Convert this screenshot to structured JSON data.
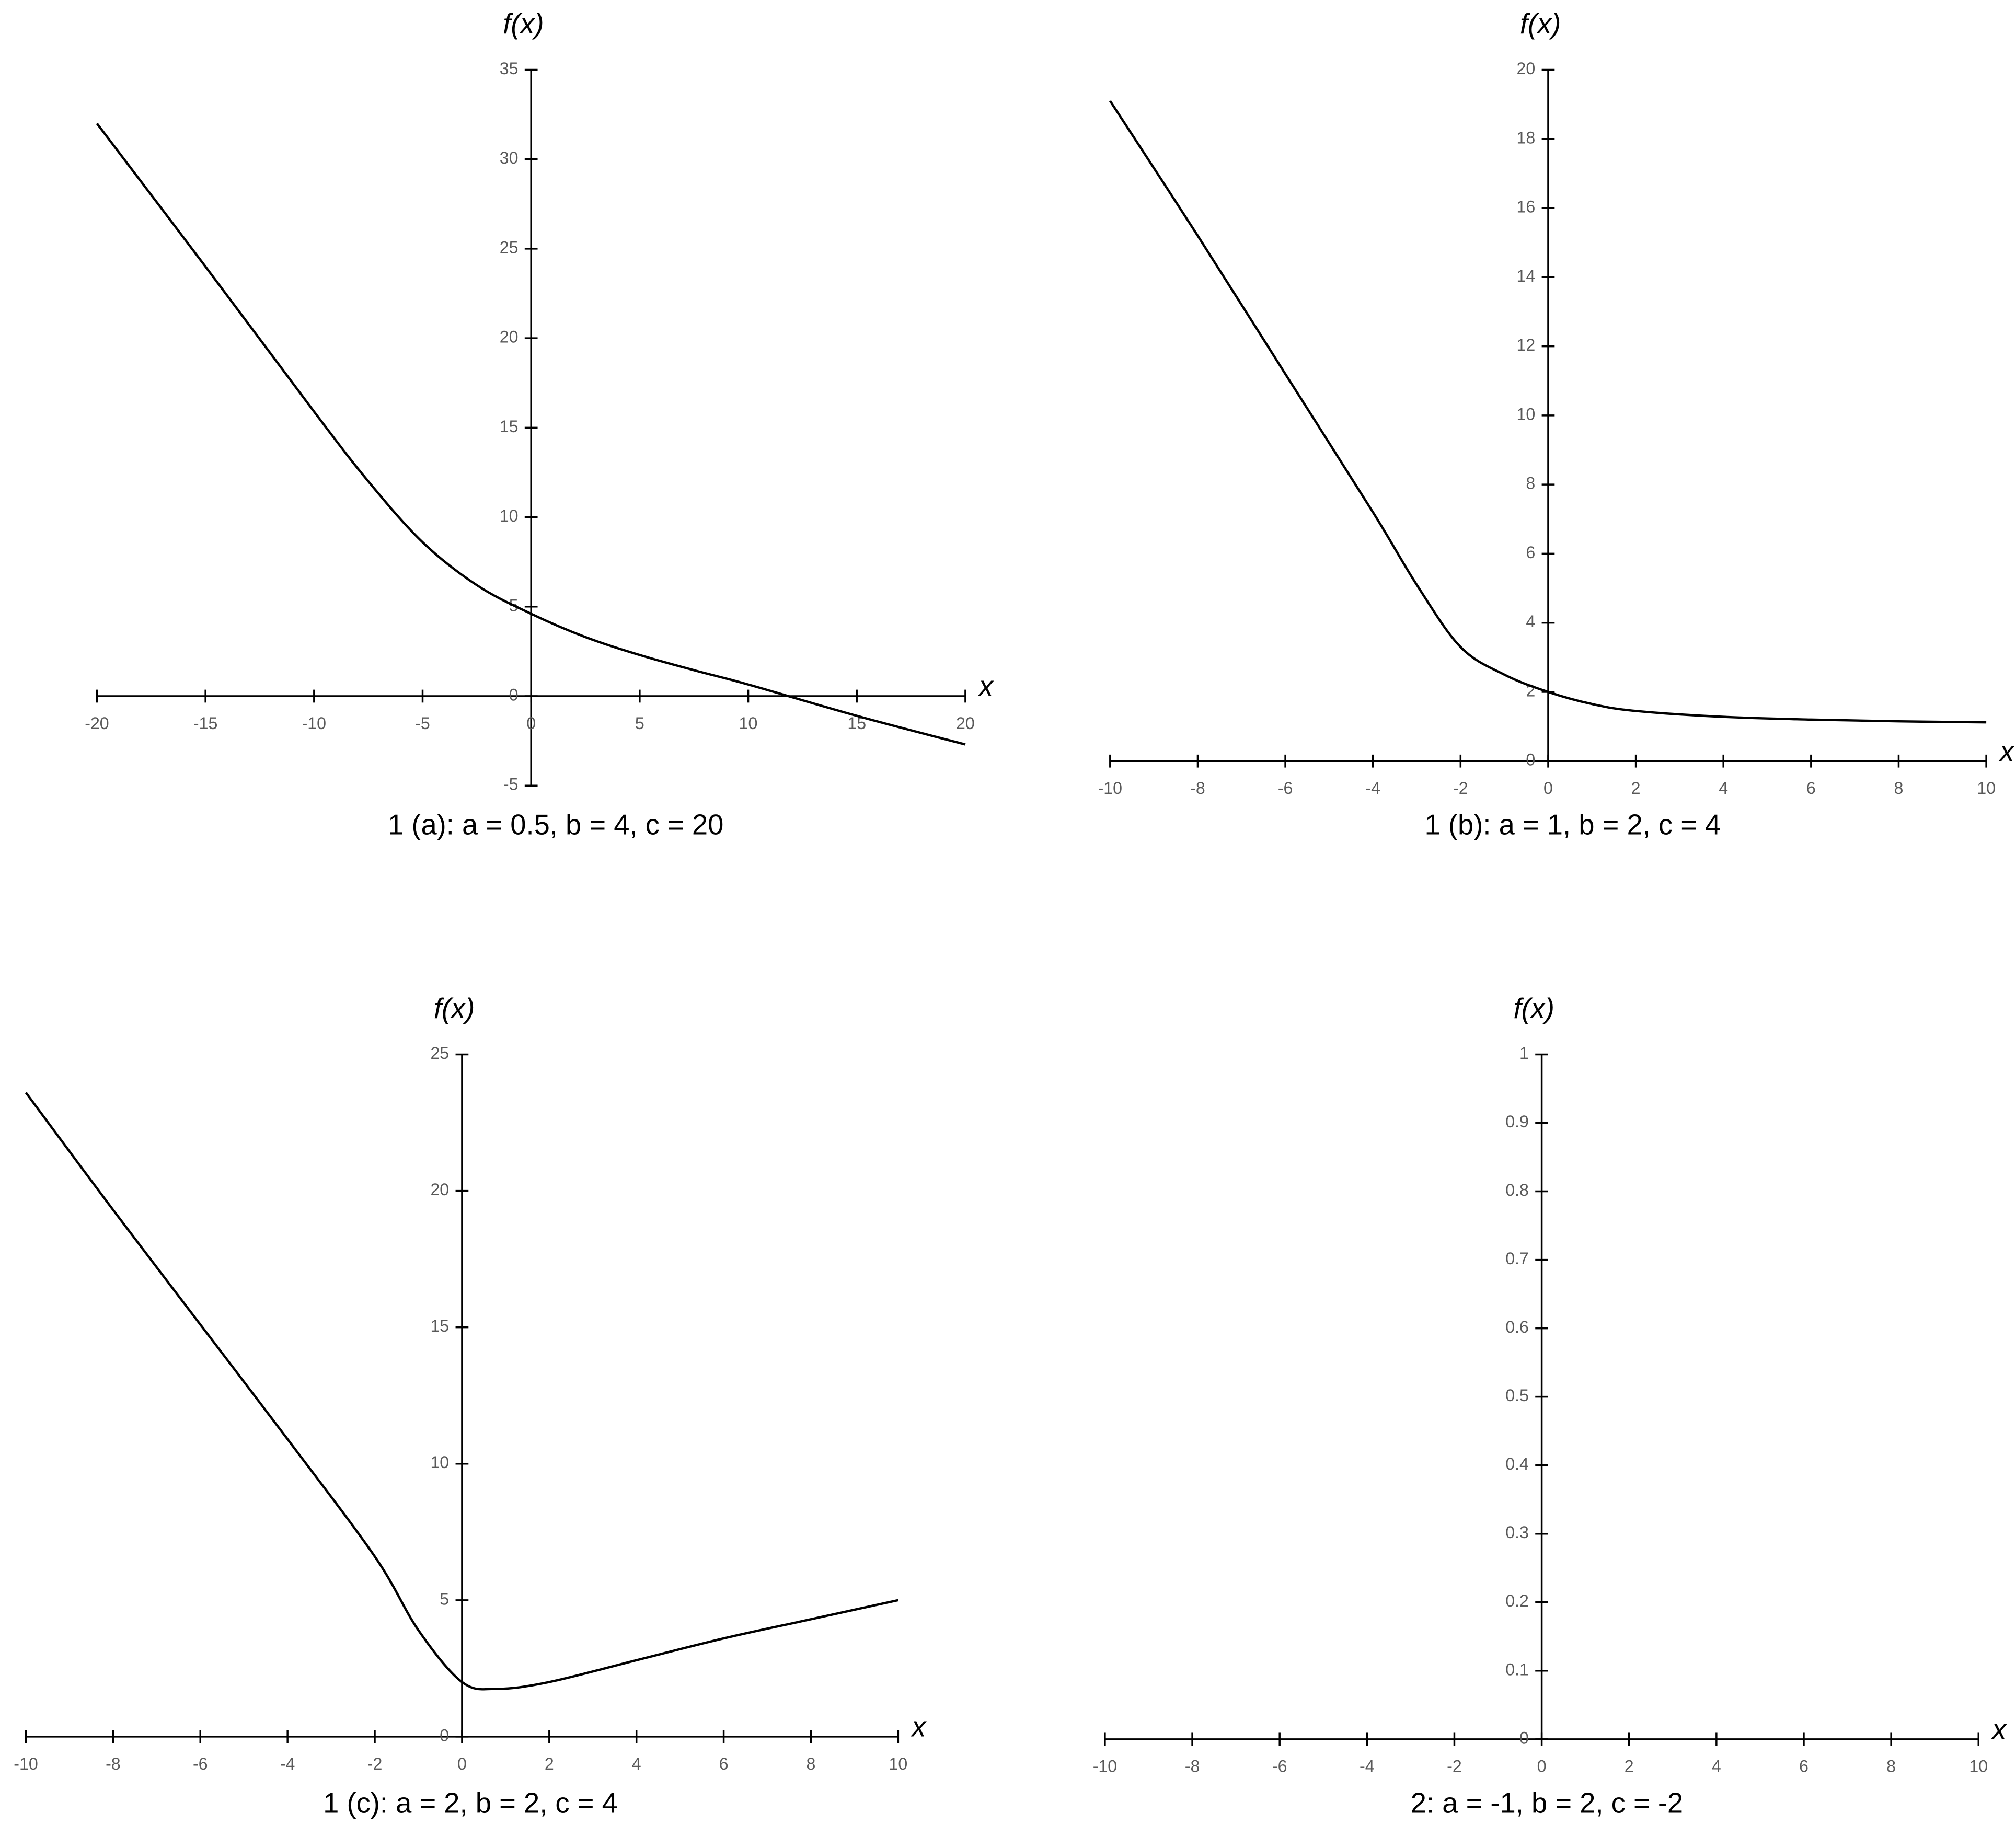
{
  "chart_data": [
    {
      "type": "line",
      "title": "1 (a): a = 0.5, b = 4, c = 20",
      "xlabel": "x",
      "ylabel": "f(x)",
      "x": [
        -20,
        -15,
        -10,
        -7.5,
        -5,
        -2.5,
        0,
        2.5,
        5,
        7.5,
        10,
        15,
        20
      ],
      "series": [
        {
          "color": "#000000",
          "values": [
            32,
            24,
            15.9,
            12,
            8.6,
            6.2,
            4.6,
            3.3,
            2.3,
            1.45,
            0.65,
            -1.1,
            -2.7
          ]
        }
      ],
      "xlim": [
        -20,
        20
      ],
      "ylim": [
        -5,
        35
      ],
      "xticks": [
        -20,
        -15,
        -10,
        -5,
        0,
        5,
        10,
        15,
        20
      ],
      "yticks": [
        -5,
        0,
        5,
        10,
        15,
        20,
        25,
        30,
        35
      ]
    },
    {
      "type": "line",
      "title": "1 (b): a = 1, b = 2, c = 4",
      "xlabel": "x",
      "ylabel": "f(x)",
      "x": [
        -10,
        -8,
        -6,
        -4,
        -3,
        -2,
        -1,
        0,
        1,
        2,
        4,
        6,
        8,
        10
      ],
      "series": [
        {
          "color": "#000000",
          "values": [
            19.1,
            15.2,
            11.2,
            7.2,
            5.1,
            3.3,
            2.5,
            2.0,
            1.65,
            1.45,
            1.28,
            1.2,
            1.15,
            1.12
          ]
        }
      ],
      "xlim": [
        -10,
        10
      ],
      "ylim": [
        0,
        20
      ],
      "xticks": [
        -10,
        -8,
        -6,
        -4,
        -2,
        0,
        2,
        4,
        6,
        8,
        10
      ],
      "yticks": [
        0,
        2,
        4,
        6,
        8,
        10,
        12,
        14,
        16,
        18,
        20
      ]
    },
    {
      "type": "line",
      "title": "1 (c): a = 2, b = 2, c = 4",
      "xlabel": "x",
      "ylabel": "f(x)",
      "x": [
        -10,
        -8,
        -6,
        -4,
        -2,
        -1,
        0,
        0.8,
        2,
        4,
        6,
        8,
        10
      ],
      "series": [
        {
          "color": "#000000",
          "values": [
            23.6,
            19.3,
            15.1,
            10.9,
            6.6,
            3.9,
            2.0,
            1.75,
            2.0,
            2.8,
            3.6,
            4.3,
            5.0
          ]
        }
      ],
      "xlim": [
        -10,
        10
      ],
      "ylim": [
        0,
        25
      ],
      "xticks": [
        -10,
        -8,
        -6,
        -4,
        -2,
        0,
        2,
        4,
        6,
        8,
        10
      ],
      "yticks": [
        0,
        5,
        10,
        15,
        20,
        25
      ]
    },
    {
      "type": "line",
      "title": "2: a = -1, b = 2, c = -2",
      "xlabel": "x",
      "ylabel": "f(x)",
      "xlim": [
        -10,
        10
      ],
      "ylim": [
        0,
        1
      ],
      "xticks": [
        -10,
        -8,
        -6,
        -4,
        -2,
        0,
        2,
        4,
        6,
        8,
        10
      ],
      "yticks": [
        0,
        0.1,
        0.2,
        0.3,
        0.4,
        0.5,
        0.6,
        0.7,
        0.8,
        0.9,
        1
      ]
    }
  ]
}
